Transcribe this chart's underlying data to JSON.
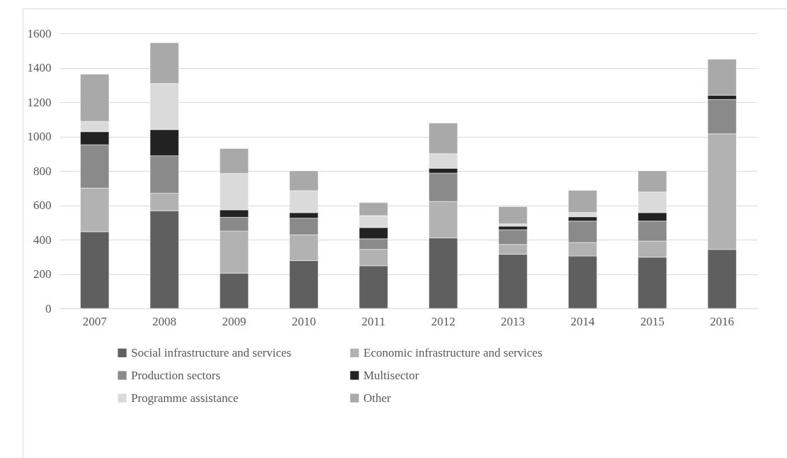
{
  "chart_data": {
    "type": "bar",
    "stacked": true,
    "categories": [
      "2007",
      "2008",
      "2009",
      "2010",
      "2011",
      "2012",
      "2013",
      "2014",
      "2015",
      "2016"
    ],
    "series": [
      {
        "name": "Social infrastructure and services",
        "color": "#5f5f5f",
        "values": [
          446,
          568,
          205,
          278,
          248,
          410,
          315,
          305,
          298,
          343
        ]
      },
      {
        "name": "Economic infrastructure and services",
        "color": "#b2b2b2",
        "values": [
          254,
          102,
          245,
          150,
          95,
          212,
          57,
          78,
          94,
          672
        ]
      },
      {
        "name": "Production sectors",
        "color": "#8a8a8a",
        "values": [
          252,
          218,
          80,
          97,
          62,
          165,
          86,
          125,
          116,
          200
        ]
      },
      {
        "name": "Multisector",
        "color": "#222222",
        "values": [
          76,
          152,
          43,
          32,
          65,
          28,
          20,
          25,
          49,
          25
        ]
      },
      {
        "name": "Programme assistance",
        "color": "#dadada",
        "values": [
          60,
          268,
          212,
          128,
          70,
          85,
          14,
          25,
          120,
          null
        ]
      },
      {
        "name": "Other",
        "color": "#a9a9a9",
        "values": [
          274,
          237,
          145,
          115,
          75,
          178,
          100,
          129,
          123,
          210
        ]
      }
    ],
    "ylim": [
      0,
      1600
    ],
    "yticks": [
      0,
      200,
      400,
      600,
      800,
      1000,
      1200,
      1400,
      1600
    ],
    "grid": "y",
    "legend": "bottom"
  }
}
